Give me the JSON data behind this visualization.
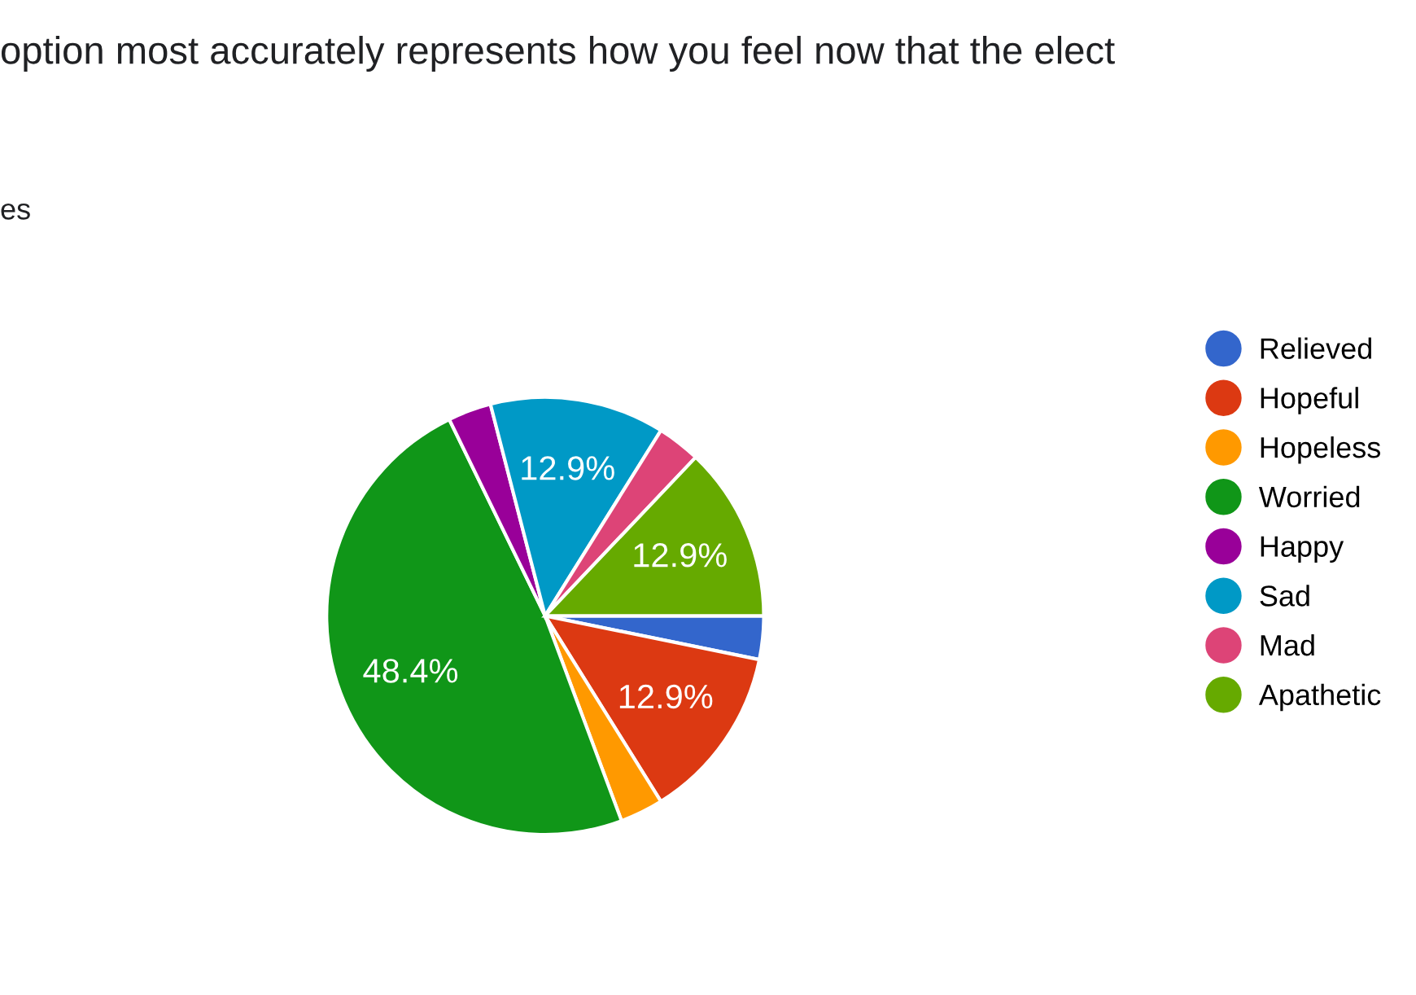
{
  "chart_data": {
    "type": "pie",
    "title": "option most accurately represents how you feel now that the elect",
    "subtitle": "es",
    "categories": [
      "Relieved",
      "Hopeful",
      "Hopeless",
      "Worried",
      "Happy",
      "Sad",
      "Mad",
      "Apathetic"
    ],
    "values": [
      3.2,
      12.9,
      3.2,
      48.4,
      3.2,
      12.9,
      3.2,
      12.9
    ],
    "value_labels": [
      null,
      "12.9%",
      null,
      "48.4%",
      null,
      "12.9%",
      null,
      "12.9%"
    ],
    "colors": [
      "#3366cc",
      "#dc3912",
      "#ff9900",
      "#109618",
      "#990099",
      "#0099c6",
      "#dd4477",
      "#66aa00"
    ],
    "legend": "right"
  }
}
